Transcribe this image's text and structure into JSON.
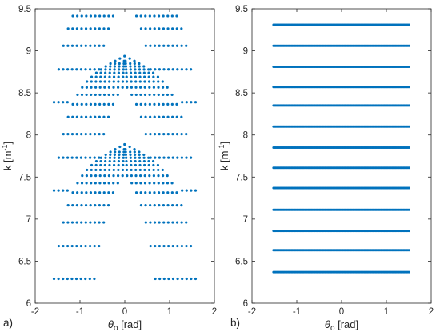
{
  "figure": {
    "marker_color": "#0072BD",
    "axes_color": "#262626"
  },
  "chart_data": [
    {
      "type": "scatter",
      "panel_tag": "a)",
      "xlabel_symbol": "θ",
      "xlabel_subscript": "o",
      "xlabel_unit": "[rad]",
      "ylabel": "k [m",
      "ylabel_superscript": "-1",
      "ylabel_close": "]",
      "xlim": [
        -2,
        2
      ],
      "ylim": [
        6,
        9.5
      ],
      "x_ticks": [
        -2,
        -1,
        0,
        1,
        2
      ],
      "x_tick_labels": [
        "-2",
        "-1",
        "0",
        "1",
        "2"
      ],
      "y_ticks": [
        6,
        6.5,
        7,
        7.5,
        8,
        8.5,
        9,
        9.5
      ],
      "y_tick_labels": [
        "6",
        "6.5",
        "7",
        "7.5",
        "8",
        "8.5",
        "9",
        "9.5"
      ],
      "grid": false,
      "legend": "none",
      "pattern": {
        "description_free": true,
        "base_levels": [
          6.29,
          7.34,
          8.39
        ],
        "edge_theta": 1.58,
        "curve_drop": 2.2,
        "curve_sharpness": 3.4,
        "curves_per_side": 10,
        "spacing": 0.1,
        "k_max": 9.43
      }
    },
    {
      "type": "scatter",
      "panel_tag": "b)",
      "xlabel_symbol": "θ",
      "xlabel_subscript": "o",
      "xlabel_unit": "[rad]",
      "ylabel": "k [m",
      "ylabel_superscript": "-1",
      "ylabel_close": "]",
      "xlim": [
        -2,
        2
      ],
      "ylim": [
        6,
        9.5
      ],
      "x_ticks": [
        -2,
        -1,
        0,
        1,
        2
      ],
      "x_tick_labels": [
        "-2",
        "-1",
        "0",
        "1",
        "2"
      ],
      "y_ticks": [
        6,
        6.5,
        7,
        7.5,
        8,
        8.5,
        9,
        9.5
      ],
      "y_tick_labels": [
        "6",
        "6.5",
        "7",
        "7.5",
        "8",
        "8.5",
        "9",
        "9.5"
      ],
      "grid": false,
      "legend": "none",
      "k_levels": [
        6.37,
        6.63,
        6.86,
        7.11,
        7.37,
        7.61,
        7.85,
        8.1,
        8.35,
        8.57,
        8.81,
        9.06,
        9.31
      ],
      "theta_range": [
        -1.52,
        1.52
      ],
      "theta_step": 0.025
    }
  ]
}
